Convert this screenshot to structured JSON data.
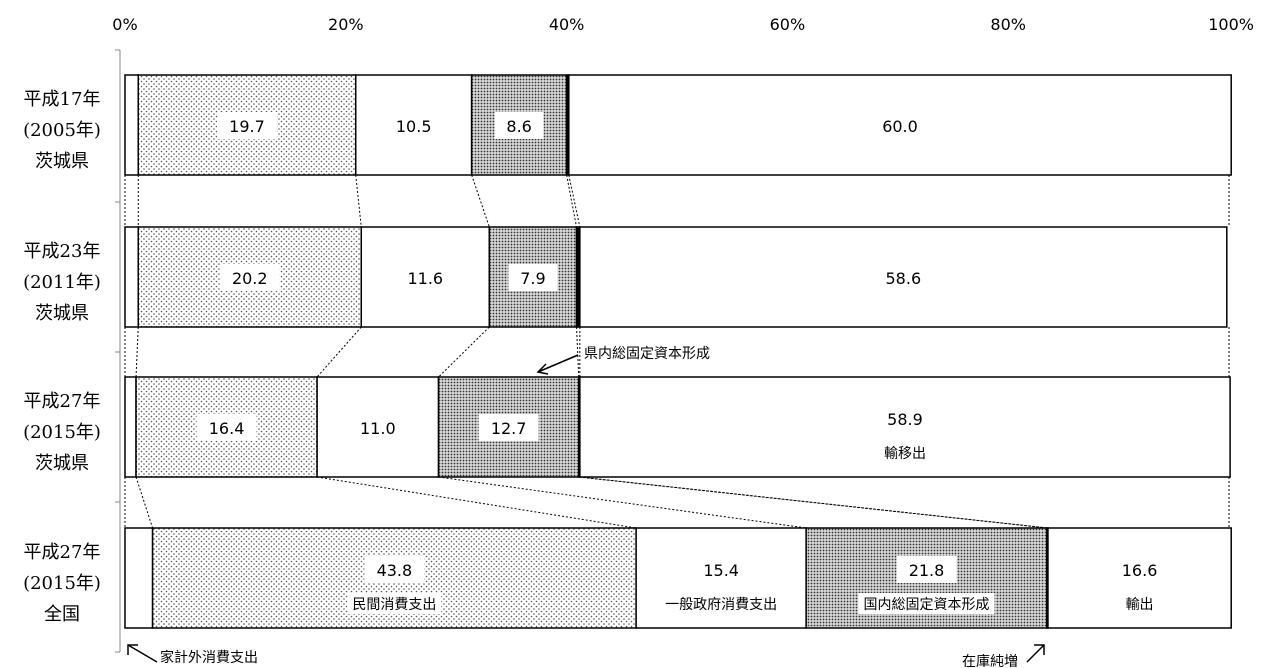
{
  "chart_data": {
    "type": "bar",
    "orientation": "horizontal",
    "stacked": true,
    "percent_stacked": true,
    "xlim": [
      0,
      100
    ],
    "x_ticks": [
      "0%",
      "20%",
      "40%",
      "60%",
      "80%",
      "100%"
    ],
    "categories": [
      [
        "平成17年",
        "(2005年)",
        "茨城県"
      ],
      [
        "平成23年",
        "(2011年)",
        "茨城県"
      ],
      [
        "平成27年",
        "(2015年)",
        "茨城県"
      ],
      [
        "平成27年",
        "(2015年)",
        "全国"
      ]
    ],
    "series": [
      {
        "name": "家計外消費支出",
        "values": [
          1.2,
          1.2,
          1.0,
          2.5
        ],
        "fill": "#ffffff",
        "pattern": "none"
      },
      {
        "name": "民間消費支出",
        "values": [
          19.7,
          20.2,
          16.4,
          43.8
        ],
        "fill": "#bbbbbb",
        "pattern": "sparse-dots"
      },
      {
        "name": "一般政府消費支出",
        "values": [
          10.5,
          11.6,
          11.0,
          15.4
        ],
        "fill": "#ffffff",
        "pattern": "none"
      },
      {
        "name": "国内総固定資本形成",
        "values": [
          8.6,
          7.9,
          12.7,
          21.8
        ],
        "fill": "#888888",
        "pattern": "dense-dots"
      },
      {
        "name": "在庫純増",
        "values": [
          0.2,
          0.3,
          0.1,
          0.1
        ],
        "fill": "#000000",
        "pattern": "none"
      },
      {
        "name": "輸出",
        "values": [
          60.0,
          58.6,
          58.9,
          16.6
        ],
        "fill": "#ffffff",
        "pattern": "none"
      }
    ],
    "data_labels": [
      [
        null,
        "19.7",
        "10.5",
        "8.6",
        null,
        "60.0"
      ],
      [
        null,
        "20.2",
        "11.6",
        "7.9",
        null,
        "58.6"
      ],
      [
        null,
        "16.4",
        "11.0",
        "12.7",
        null,
        "58.9"
      ],
      [
        null,
        "43.8",
        "15.4",
        "21.8",
        null,
        "16.6"
      ]
    ],
    "segment_names": [
      [
        null,
        null,
        null,
        null,
        null,
        null
      ],
      [
        null,
        null,
        null,
        null,
        null,
        null
      ],
      [
        null,
        null,
        null,
        null,
        null,
        "輸移出"
      ],
      [
        null,
        "民間消費支出",
        "一般政府消費支出",
        "国内総固定資本形成",
        null,
        "輸出"
      ]
    ],
    "annotations": {
      "kengai": "家計外消費支出",
      "kennai": "県内総固定資本形成",
      "zaiko": "在庫純増"
    },
    "grid": false,
    "legend": "none"
  }
}
